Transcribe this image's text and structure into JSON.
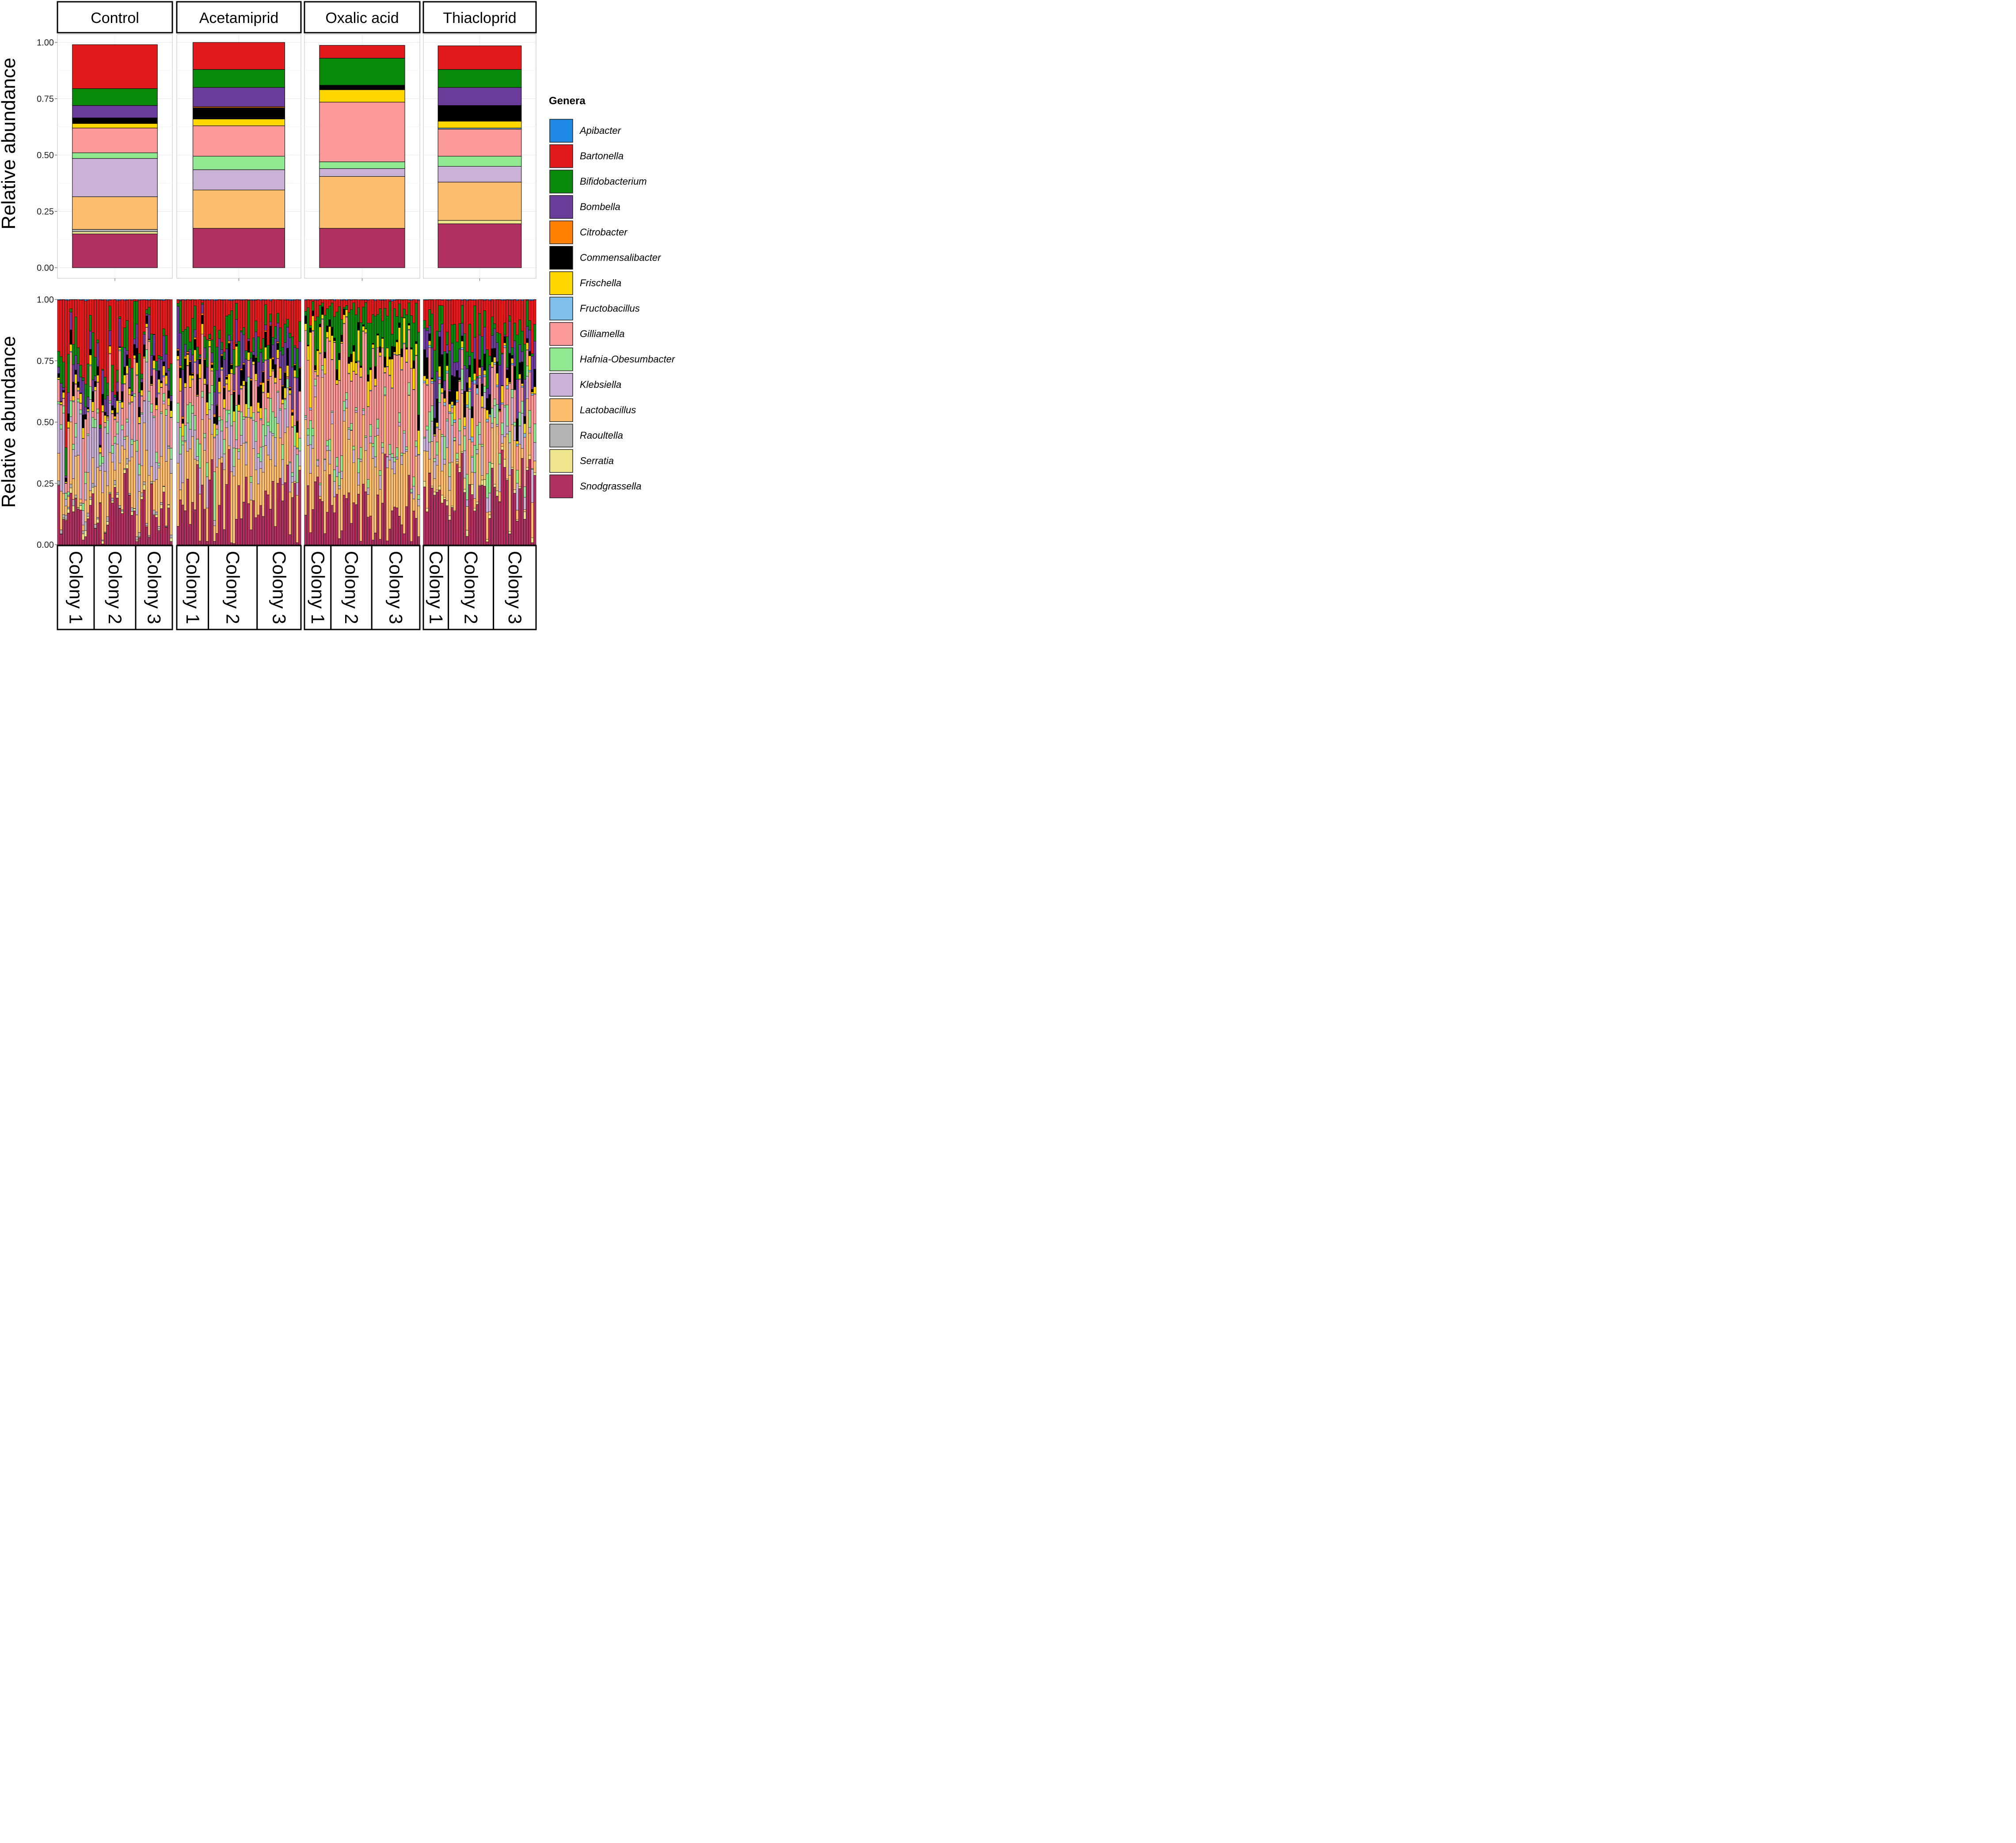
{
  "chart_data": {
    "type": "bar",
    "stacked": true,
    "title": "",
    "facets": [
      "Control",
      "Acetamiprid",
      "Oxalic acid",
      "Thiacloprid"
    ],
    "ylabel": "Relative abundance",
    "ylim": [
      0,
      1
    ],
    "yticks": [
      "0.00",
      "0.25",
      "0.50",
      "0.75",
      "1.00"
    ],
    "legend": {
      "title": "Genera",
      "position": "right",
      "items": [
        "Apibacter",
        "Bartonella",
        "Bifidobacterium",
        "Bombella",
        "Citrobacter",
        "Commensalibacter",
        "Frischella",
        "Fructobacillus",
        "Gilliamella",
        "Hafnia-Obesumbacter",
        "Klebsiella",
        "Lactobacillus",
        "Raoultella",
        "Serratia",
        "Snodgrassella"
      ]
    },
    "colors": {
      "Apibacter": "#1e88e5",
      "Bartonella": "#e31a1c",
      "Bifidobacterium": "#0a8a0a",
      "Bombella": "#6a3d9a",
      "Citrobacter": "#ff7f00",
      "Commensalibacter": "#000000",
      "Frischella": "#ffd700",
      "Fructobacillus": "#7fbfea",
      "Gilliamella": "#fb9a99",
      "Hafnia-Obesumbacter": "#90e990",
      "Klebsiella": "#cab2d6",
      "Lactobacillus": "#fdbf6f",
      "Raoultella": "#b3b3b3",
      "Serratia": "#eee58c",
      "Snodgrassella": "#b03060"
    },
    "stack_order_bottom_to_top": [
      "Snodgrassella",
      "Serratia",
      "Raoultella",
      "Lactobacillus",
      "Klebsiella",
      "Hafnia-Obesumbacter",
      "Gilliamella",
      "Fructobacillus",
      "Frischella",
      "Commensalibacter",
      "Citrobacter",
      "Bombella",
      "Bifidobacterium",
      "Bartonella",
      "Apibacter"
    ],
    "panels": [
      {
        "name": "mean",
        "groups": [
          {
            "treatment": "Control",
            "values": {
              "Snodgrassella": 0.15,
              "Serratia": 0.01,
              "Raoultella": 0.01,
              "Lactobacillus": 0.145,
              "Klebsiella": 0.17,
              "Hafnia-Obesumbacter": 0.025,
              "Gilliamella": 0.11,
              "Fructobacillus": 0.0,
              "Frischella": 0.02,
              "Commensalibacter": 0.025,
              "Citrobacter": 0.0,
              "Bombella": 0.055,
              "Bifidobacterium": 0.075,
              "Bartonella": 0.195,
              "Apibacter": 0.0
            }
          },
          {
            "treatment": "Acetamiprid",
            "values": {
              "Snodgrassella": 0.175,
              "Serratia": 0.0,
              "Raoultella": 0.0,
              "Lactobacillus": 0.17,
              "Klebsiella": 0.09,
              "Hafnia-Obesumbacter": 0.06,
              "Gilliamella": 0.135,
              "Fructobacillus": 0.0,
              "Frischella": 0.03,
              "Commensalibacter": 0.05,
              "Citrobacter": 0.005,
              "Bombella": 0.085,
              "Bifidobacterium": 0.08,
              "Bartonella": 0.12,
              "Apibacter": 0.0
            }
          },
          {
            "treatment": "Oxalic acid",
            "values": {
              "Snodgrassella": 0.175,
              "Serratia": 0.0,
              "Raoultella": 0.0,
              "Lactobacillus": 0.23,
              "Klebsiella": 0.035,
              "Hafnia-Obesumbacter": 0.03,
              "Gilliamella": 0.265,
              "Fructobacillus": 0.0,
              "Frischella": 0.055,
              "Commensalibacter": 0.02,
              "Citrobacter": 0.0,
              "Bombella": 0.0,
              "Bifidobacterium": 0.12,
              "Bartonella": 0.057,
              "Apibacter": 0.0
            }
          },
          {
            "treatment": "Thiacloprid",
            "values": {
              "Snodgrassella": 0.195,
              "Serratia": 0.015,
              "Raoultella": 0.0,
              "Lactobacillus": 0.17,
              "Klebsiella": 0.07,
              "Hafnia-Obesumbacter": 0.045,
              "Gilliamella": 0.12,
              "Fructobacillus": 0.005,
              "Frischella": 0.03,
              "Commensalibacter": 0.07,
              "Citrobacter": 0.0,
              "Bombella": 0.08,
              "Bifidobacterium": 0.08,
              "Bartonella": 0.105,
              "Apibacter": 0.0
            }
          }
        ]
      },
      {
        "name": "per-sample",
        "note": "approximate: samples per colony estimated from the figure",
        "groups": [
          {
            "treatment": "Control",
            "colonies": [
              {
                "label": "Colony 1",
                "n": 15
              },
              {
                "label": "Colony 2",
                "n": 17
              },
              {
                "label": "Colony 3",
                "n": 15
              }
            ]
          },
          {
            "treatment": "Acetamiprid",
            "colonies": [
              {
                "label": "Colony 1",
                "n": 13
              },
              {
                "label": "Colony 2",
                "n": 20
              },
              {
                "label": "Colony 3",
                "n": 18
              }
            ]
          },
          {
            "treatment": "Oxalic acid",
            "colonies": [
              {
                "label": "Colony 1",
                "n": 11
              },
              {
                "label": "Colony 2",
                "n": 17
              },
              {
                "label": "Colony 3",
                "n": 20
              }
            ]
          },
          {
            "treatment": "Thiacloprid",
            "colonies": [
              {
                "label": "Colony 1",
                "n": 10
              },
              {
                "label": "Colony 2",
                "n": 18
              },
              {
                "label": "Colony 3",
                "n": 17
              }
            ]
          }
        ]
      }
    ]
  }
}
